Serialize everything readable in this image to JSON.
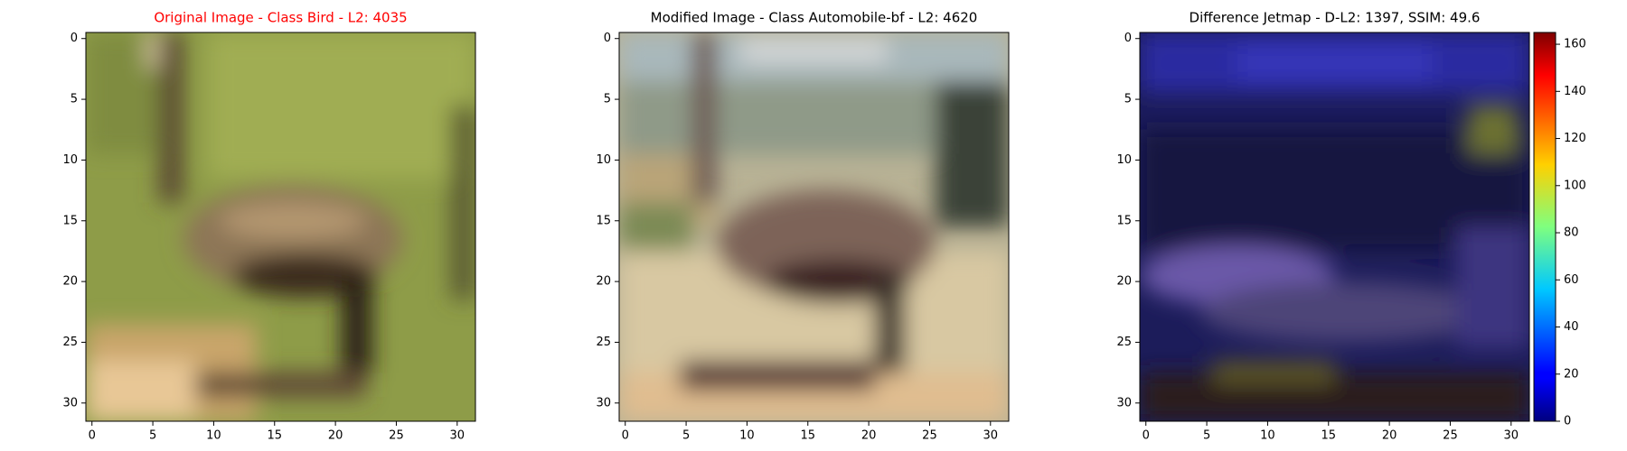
{
  "chart_data": [
    {
      "type": "image",
      "title": "Original Image - Class Bird - L2: 4035",
      "title_color": "#ff0000",
      "xlim": [
        -0.5,
        31.5
      ],
      "ylim": [
        31.5,
        -0.5
      ],
      "xticks": [
        0,
        5,
        10,
        15,
        20,
        25,
        30
      ],
      "yticks": [
        0,
        5,
        10,
        15,
        20,
        25,
        30
      ]
    },
    {
      "type": "image",
      "title": "Modified Image - Class Automobile-bf - L2: 4620",
      "title_color": "#000000",
      "xlim": [
        -0.5,
        31.5
      ],
      "ylim": [
        31.5,
        -0.5
      ],
      "xticks": [
        0,
        5,
        10,
        15,
        20,
        25,
        30
      ],
      "yticks": [
        0,
        5,
        10,
        15,
        20,
        25,
        30
      ]
    },
    {
      "type": "image",
      "title": "Difference Jetmap - D-L2: 1397, SSIM: 49.6",
      "title_color": "#000000",
      "xlim": [
        -0.5,
        31.5
      ],
      "ylim": [
        31.5,
        -0.5
      ],
      "xticks": [
        0,
        5,
        10,
        15,
        20,
        25,
        30
      ],
      "yticks": [
        0,
        5,
        10,
        15,
        20,
        25,
        30
      ],
      "colorbar": {
        "colormap": "jet",
        "lim": [
          0,
          165
        ],
        "ticks": [
          0,
          20,
          40,
          60,
          80,
          100,
          120,
          140,
          160
        ]
      }
    }
  ]
}
